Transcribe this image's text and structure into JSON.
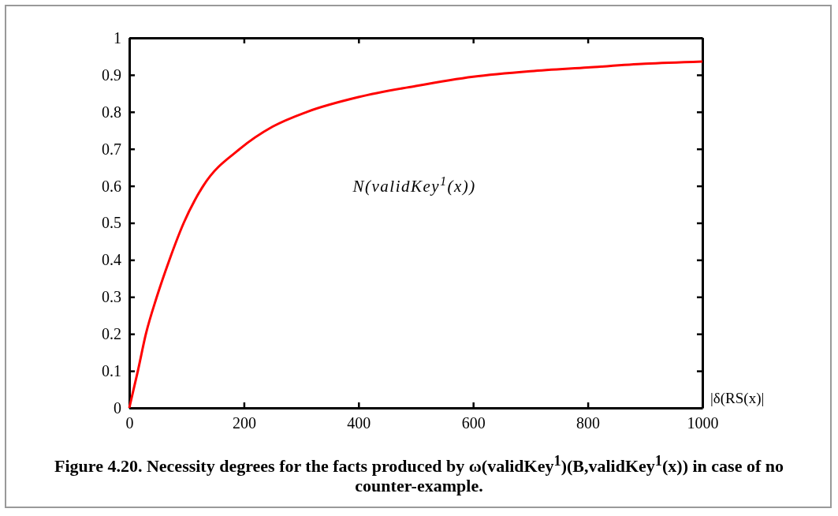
{
  "chart_data": {
    "type": "line",
    "title": "Figure 4.20.  Necessity degrees for the facts produced by ω(validKey$^{1}$)(B,validKey$^{1}$(x)) in case of no counter-example.",
    "xlabel": "|δ(RS(x)|",
    "x": [
      0,
      15,
      29,
      48,
      70,
      95,
      129,
      193,
      250,
      310,
      400,
      500,
      600,
      700,
      800,
      900,
      1000
    ],
    "series": [
      {
        "name": "N(validKey$^{1}$(x))",
        "color": "#ff0000",
        "values": [
          0,
          0.1,
          0.2,
          0.3,
          0.4,
          0.5,
          0.6,
          0.7,
          0.76,
          0.8,
          0.84,
          0.87,
          0.895,
          0.91,
          0.92,
          0.93,
          0.936
        ]
      }
    ],
    "xlim": [
      0,
      1000
    ],
    "xticks": [
      0,
      200,
      400,
      600,
      800,
      1000
    ],
    "ylim": [
      0,
      1
    ],
    "yticks": [
      0,
      0.1,
      0.2,
      0.3,
      0.4,
      0.5,
      0.6,
      0.7,
      0.8,
      0.9,
      1
    ],
    "grid": false,
    "legend": false,
    "line_style": "solid"
  }
}
